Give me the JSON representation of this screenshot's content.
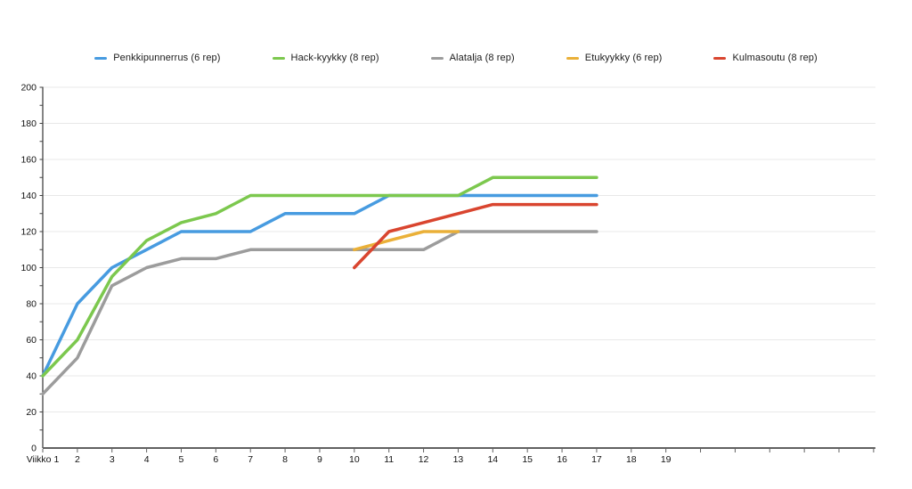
{
  "page": {
    "background": "#ffffff",
    "text_color": "#1b1b1b"
  },
  "chart_data": {
    "type": "line",
    "title": "",
    "xlabel": "",
    "ylabel": "",
    "x_axis": {
      "labels": [
        "Viikko 1",
        "2",
        "3",
        "4",
        "5",
        "6",
        "7",
        "8",
        "9",
        "10",
        "11",
        "12",
        "13",
        "14",
        "15",
        "16",
        "17",
        "18",
        "19"
      ],
      "labeled_ticks": 19,
      "total_ticks": 25
    },
    "y_axis": {
      "min": 0,
      "max": 200,
      "label_step": 20,
      "minor_tick_step": 10,
      "tick_labels": [
        "0",
        "20",
        "40",
        "60",
        "80",
        "100",
        "120",
        "140",
        "160",
        "180",
        "200"
      ]
    },
    "grid": "horizontal-major-only",
    "legend_position": "top",
    "series": [
      {
        "name": "Penkkipunnerrus (6 rep)",
        "color": "#479be0",
        "start_week": 1,
        "values": [
          40,
          80,
          100,
          110,
          120,
          120,
          120,
          130,
          130,
          130,
          140,
          140,
          140,
          140,
          140,
          140,
          140
        ]
      },
      {
        "name": "Hack-kyykky (8 rep)",
        "color": "#7cc84e",
        "start_week": 1,
        "values": [
          40,
          60,
          95,
          115,
          125,
          130,
          140,
          140,
          140,
          140,
          140,
          140,
          140,
          150,
          150,
          150,
          150
        ]
      },
      {
        "name": "Alatalja (8 rep)",
        "color": "#9c9c9c",
        "start_week": 1,
        "values": [
          30,
          50,
          90,
          100,
          105,
          105,
          110,
          110,
          110,
          110,
          110,
          110,
          120,
          120,
          120,
          120,
          120
        ]
      },
      {
        "name": "Etukyykky (6 rep)",
        "color": "#eab038",
        "start_week": 10,
        "values": [
          110,
          115,
          120,
          120
        ]
      },
      {
        "name": "Kulmasoutu (8 rep)",
        "color": "#d9452f",
        "start_week": 10,
        "values": [
          100,
          120,
          125,
          130,
          135,
          135,
          135,
          135
        ]
      }
    ],
    "style": {
      "gridline_color": "#e8e8e8",
      "x_axis_color": "#616161",
      "y_axis_color": "#424242",
      "axis_label_color": "#111111",
      "line_width": 3.5
    }
  }
}
